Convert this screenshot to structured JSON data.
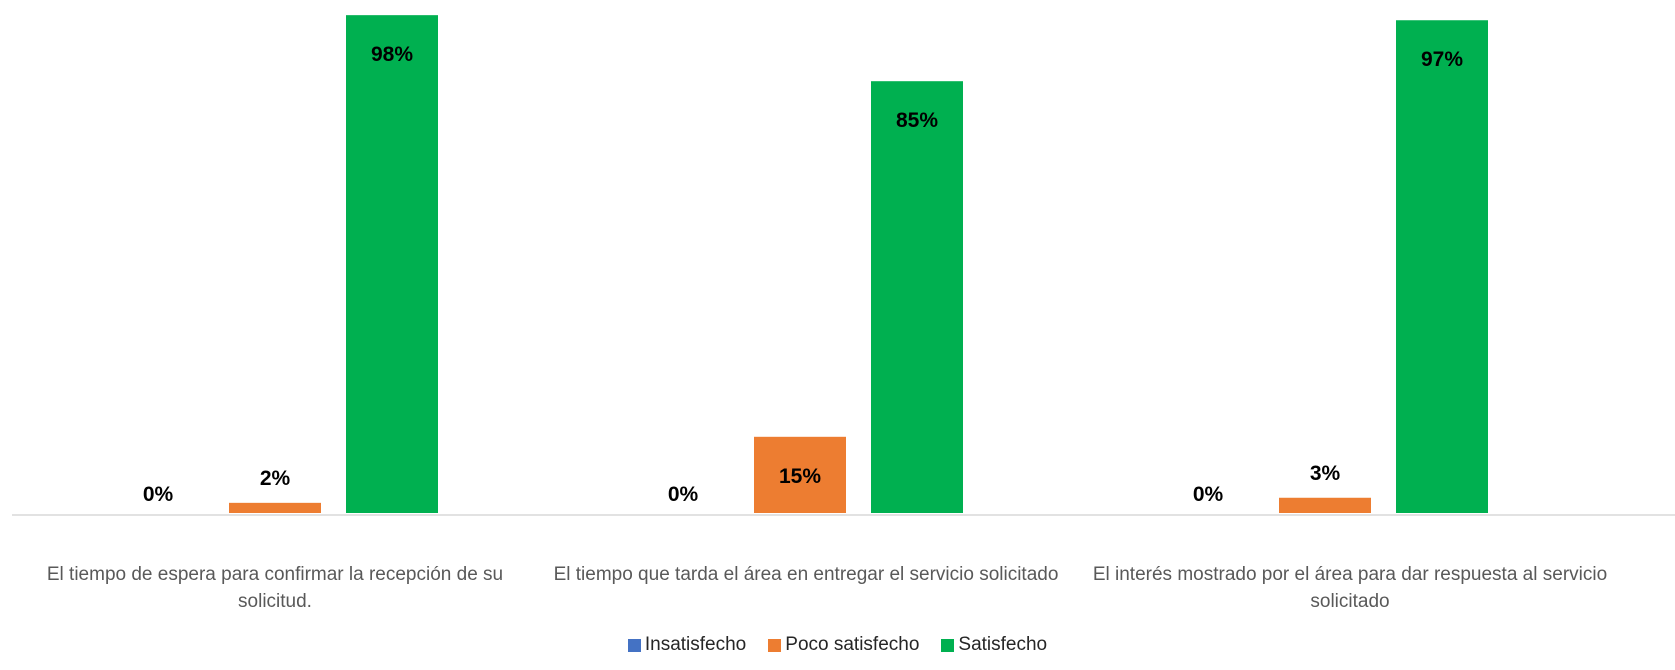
{
  "chart_data": {
    "type": "bar",
    "categories": [
      "El tiempo de espera para confirmar la recepción de su solicitud.",
      "El tiempo que tarda el área en entregar el servicio solicitado",
      "El interés mostrado por el área para dar respuesta al servicio solicitado"
    ],
    "series": [
      {
        "name": "Insatisfecho",
        "color": "#4472C4",
        "values": [
          0,
          0,
          0
        ],
        "labels": [
          "0%",
          "0%",
          "0%"
        ]
      },
      {
        "name": "Poco satisfecho",
        "color": "#ED7D31",
        "values": [
          2,
          15,
          3
        ],
        "labels": [
          "2%",
          "15%",
          "3%"
        ]
      },
      {
        "name": "Satisfecho",
        "color": "#00B050",
        "values": [
          98,
          85,
          97
        ],
        "labels": [
          "98%",
          "85%",
          "97%"
        ]
      }
    ],
    "ylim": [
      0,
      100
    ],
    "grid": false,
    "legend_position": "bottom"
  }
}
